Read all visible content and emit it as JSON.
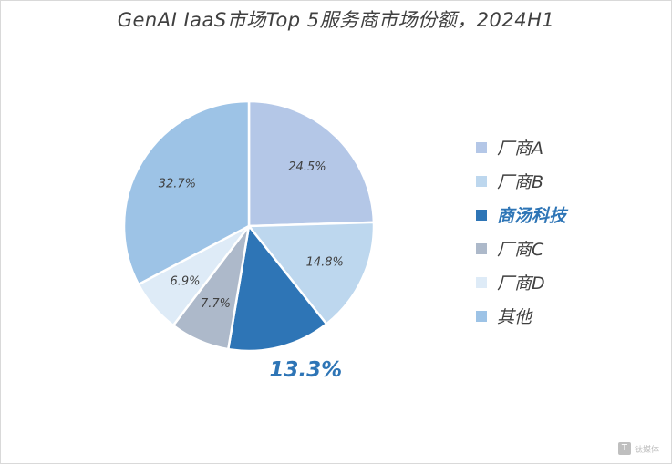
{
  "title": "GenAI IaaS市场Top 5服务商市场份额，2024H1",
  "watermark": {
    "text": "钛媒体",
    "icon_glyph": "T"
  },
  "chart_data": {
    "type": "pie",
    "title": "GenAI IaaS市场Top 5服务商市场份额，2024H1",
    "start_angle": "12 o'clock, clockwise",
    "legend_position": "right",
    "slices": [
      {
        "label": "厂商A",
        "value": 24.5,
        "display": "24.5%",
        "color": "#b4c7e7",
        "highlight": false
      },
      {
        "label": "厂商B",
        "value": 14.8,
        "display": "14.8%",
        "color": "#bdd7ee",
        "highlight": false
      },
      {
        "label": "商汤科技",
        "value": 13.3,
        "display": "13.3%",
        "color": "#2e75b6",
        "highlight": true
      },
      {
        "label": "厂商C",
        "value": 7.7,
        "display": "7.7%",
        "color": "#adb9ca",
        "highlight": false
      },
      {
        "label": "厂商D",
        "value": 6.9,
        "display": "6.9%",
        "color": "#deebf7",
        "highlight": false
      },
      {
        "label": "其他",
        "value": 32.7,
        "display": "32.7%",
        "color": "#9dc3e6",
        "highlight": false
      }
    ]
  }
}
